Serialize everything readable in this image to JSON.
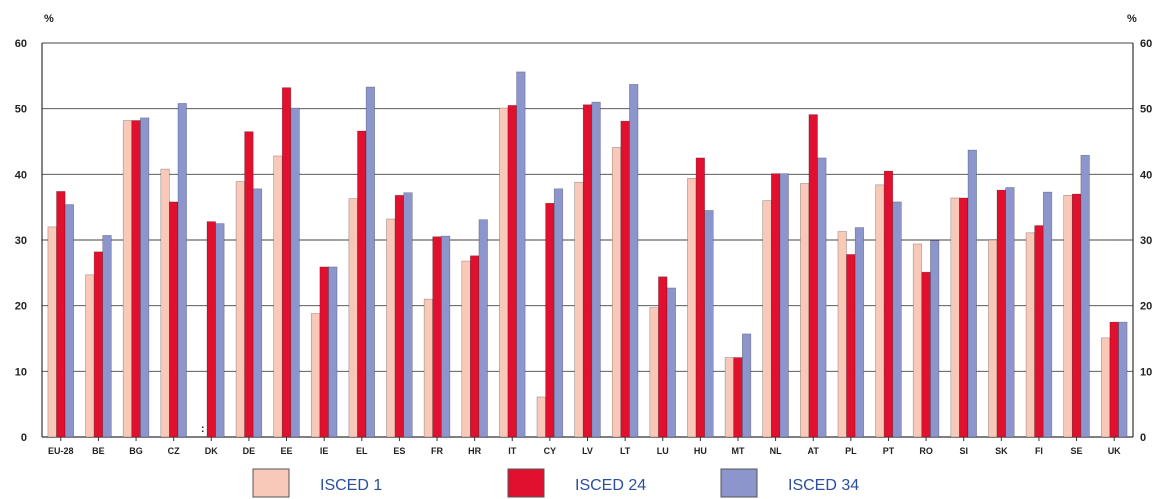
{
  "chart_data": {
    "type": "bar",
    "y_unit_left": "%",
    "y_unit_right": "%",
    "ylim": [
      0,
      60
    ],
    "yticks": [
      "0",
      "10",
      "20",
      "30",
      "40",
      "50",
      "60"
    ],
    "grid": true,
    "legend_position": "bottom",
    "categories": [
      "EU-28",
      "BE",
      "BG",
      "CZ",
      "DK",
      "DE",
      "EE",
      "IE",
      "EL",
      "ES",
      "FR",
      "HR",
      "IT",
      "CY",
      "LV",
      "LT",
      "LU",
      "HU",
      "MT",
      "NL",
      "AT",
      "PL",
      "PT",
      "RO",
      "SI",
      "SK",
      "FI",
      "SE",
      "UK"
    ],
    "series": [
      {
        "name": "ISCED 1",
        "color": "#f8c8b8",
        "values": [
          32,
          24.7,
          48.2,
          40.8,
          null,
          38.9,
          42.8,
          18.8,
          36.3,
          33.2,
          21,
          26.8,
          50.1,
          6.1,
          38.8,
          44.1,
          19.7,
          39.4,
          12.1,
          36,
          38.6,
          31.3,
          38.4,
          29.4,
          36.4,
          30,
          31.1,
          36.8,
          15.1
        ]
      },
      {
        "name": "ISCED 24",
        "color": "#e0102e",
        "values": [
          37.4,
          28.2,
          48.2,
          35.8,
          32.8,
          46.5,
          53.2,
          25.9,
          46.6,
          36.8,
          30.5,
          27.6,
          50.5,
          35.6,
          50.6,
          48.1,
          24.4,
          42.5,
          12.1,
          40.1,
          49.1,
          27.8,
          40.5,
          25.1,
          36.4,
          37.6,
          32.2,
          37,
          17.5
        ]
      },
      {
        "name": "ISCED 34",
        "color": "#8c96cc",
        "values": [
          35.4,
          30.7,
          48.6,
          50.8,
          32.5,
          37.8,
          50.1,
          25.9,
          53.3,
          37.2,
          30.6,
          33.1,
          55.6,
          37.8,
          51,
          53.7,
          22.7,
          34.5,
          15.7,
          40.1,
          42.5,
          31.9,
          35.8,
          29.9,
          43.7,
          38,
          37.3,
          42.9,
          17.5
        ]
      }
    ],
    "annotations": [
      {
        "category": "DK",
        "series": "ISCED 1",
        "text": ":"
      }
    ]
  }
}
